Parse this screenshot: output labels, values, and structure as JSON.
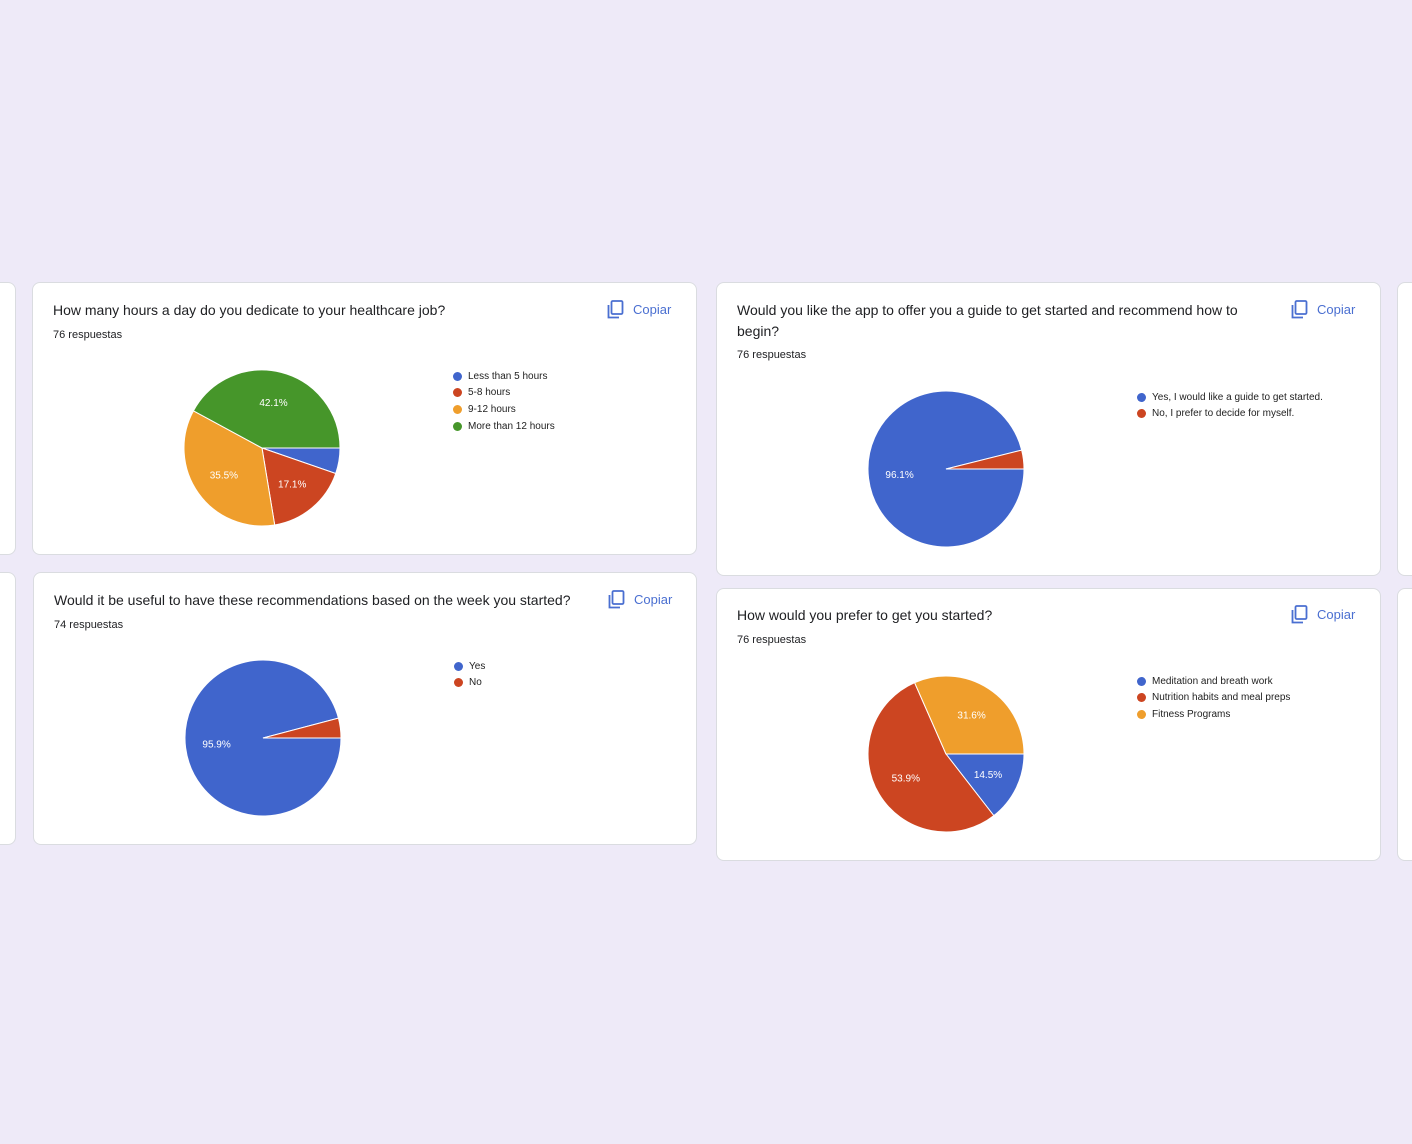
{
  "copy_label": "Copiar",
  "colors": {
    "blue": "#4065cc",
    "red": "#cc4521",
    "orange": "#ef9e2c",
    "green": "#46962a"
  },
  "cards": [
    {
      "title": "How many hours a day do you dedicate to your healthcare job?",
      "count": "76 respuestas",
      "legend": [
        "Less than 5 hours",
        "5-8 hours",
        "9-12 hours",
        "More than 12 hours"
      ],
      "slice_labels": [
        "",
        "17.1%",
        "35.5%",
        "42.1%"
      ]
    },
    {
      "title": "Would it be useful to have these recommendations based on the week you started?",
      "count": "74 respuestas",
      "legend": [
        "Yes",
        "No"
      ],
      "slice_labels": [
        "95.9%",
        ""
      ]
    },
    {
      "title": "Would you like the app to offer you a guide to get started and recommend how to begin?",
      "count": "76 respuestas",
      "legend": [
        "Yes, I would like a guide to get started.",
        "No, I prefer to decide for myself."
      ],
      "slice_labels": [
        "96.1%",
        ""
      ]
    },
    {
      "title": "How would you prefer to get you started?",
      "count": "76 respuestas",
      "legend": [
        "Meditation and breath work",
        "Nutrition habits and meal preps",
        "Fitness Programs"
      ],
      "slice_labels": [
        "14.5%",
        "53.9%",
        "31.6%"
      ]
    }
  ],
  "chart_data": [
    {
      "type": "pie",
      "title": "How many hours a day do you dedicate to your healthcare job?",
      "labels": [
        "Less than 5 hours",
        "5-8 hours",
        "9-12 hours",
        "More than 12 hours"
      ],
      "values": [
        5.3,
        17.1,
        35.5,
        42.1
      ],
      "colors": [
        "#4065cc",
        "#cc4521",
        "#ef9e2c",
        "#46962a"
      ],
      "legend": "right"
    },
    {
      "type": "pie",
      "title": "Would it be useful to have these recommendations based on the week you started?",
      "labels": [
        "Yes",
        "No"
      ],
      "values": [
        95.9,
        4.1
      ],
      "colors": [
        "#4065cc",
        "#cc4521"
      ],
      "legend": "right"
    },
    {
      "type": "pie",
      "title": "Would you like the app to offer you a guide to get started and recommend how to begin?",
      "labels": [
        "Yes, I would like a guide to get started.",
        "No, I prefer to decide for myself."
      ],
      "values": [
        96.1,
        3.9
      ],
      "colors": [
        "#4065cc",
        "#cc4521"
      ],
      "legend": "right"
    },
    {
      "type": "pie",
      "title": "How would you prefer to get you started?",
      "labels": [
        "Meditation and breath work",
        "Nutrition habits and meal preps",
        "Fitness Programs"
      ],
      "values": [
        14.5,
        53.9,
        31.6
      ],
      "colors": [
        "#4065cc",
        "#cc4521",
        "#ef9e2c"
      ],
      "legend": "right"
    }
  ]
}
